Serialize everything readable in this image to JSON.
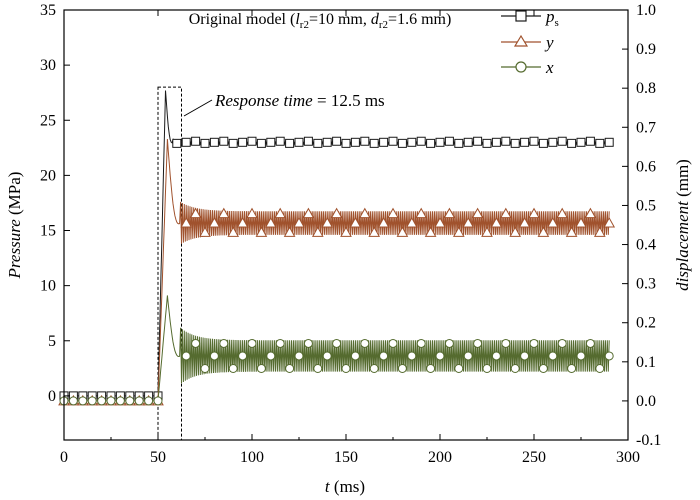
{
  "chart_data": {
    "type": "line",
    "title_prefix": "Original model (",
    "title_l": "l",
    "title_l_sub": "r2",
    "title_mid": "=10 mm, ",
    "title_d": "d",
    "title_d_sub": "r2",
    "title_suffix": "=1.6 mm)",
    "xlabel_var": "t",
    "xlabel_unit": " (ms)",
    "ylabel_left_var": "Pressure",
    "ylabel_left_unit": " (MPa)",
    "ylabel_right_var": "displacement",
    "ylabel_right_unit": " (mm)",
    "xlim": [
      0,
      300
    ],
    "ylim_left": [
      -4,
      35
    ],
    "ylim_right": [
      -0.1,
      1.0
    ],
    "x_ticks": [
      0,
      50,
      100,
      150,
      200,
      250,
      300
    ],
    "x_tick_labels": [
      "0",
      "50",
      "100",
      "150",
      "200",
      "250",
      "300"
    ],
    "y_left_ticks": [
      0,
      5,
      10,
      15,
      20,
      25,
      30,
      35
    ],
    "y_left_tick_labels": [
      "0",
      "5",
      "10",
      "15",
      "20",
      "25",
      "30",
      "35"
    ],
    "y_right_ticks": [
      -0.1,
      0.0,
      0.1,
      0.2,
      0.3,
      0.4,
      0.5,
      0.6,
      0.7,
      0.8,
      0.9,
      1.0
    ],
    "y_right_tick_labels": [
      "-0.1",
      "0.0",
      "0.1",
      "0.2",
      "0.3",
      "0.4",
      "0.5",
      "0.6",
      "0.7",
      "0.8",
      "0.9",
      "1.0"
    ],
    "legend_placement": "top-right",
    "grid": false,
    "annotation_var": "Response time",
    "annotation_rest": " = 12.5 ms",
    "response_window_ms": [
      50,
      62.5
    ],
    "response_window_pressure": [
      -4,
      28
    ],
    "series": [
      {
        "name": "p",
        "name_sub": "s",
        "axis": "left",
        "marker": "square",
        "color": "#1a1a1a",
        "start_ms": 0,
        "step_ms": 50,
        "initial": 0,
        "peak_ms": 54,
        "peak": 27.7,
        "steady_from_ms": 58,
        "steady": 23.0,
        "ripple": 0.12,
        "end_ms": 290
      },
      {
        "name": "y",
        "axis": "right",
        "marker": "triangle",
        "color": "#a0522d",
        "start_ms": 0,
        "step_ms": 50,
        "initial": 0,
        "peak_ms": 55,
        "peak": 0.67,
        "steady_from_ms": 62,
        "steady": 0.455,
        "ripple": 0.03,
        "end_ms": 290
      },
      {
        "name": "x",
        "axis": "right",
        "marker": "circle",
        "color": "#556b2f",
        "start_ms": 0,
        "step_ms": 50,
        "initial": 0,
        "peak_ms": 55,
        "peak": 0.27,
        "steady_from_ms": 62,
        "steady": 0.115,
        "ripple": 0.04,
        "end_ms": 290
      }
    ]
  }
}
